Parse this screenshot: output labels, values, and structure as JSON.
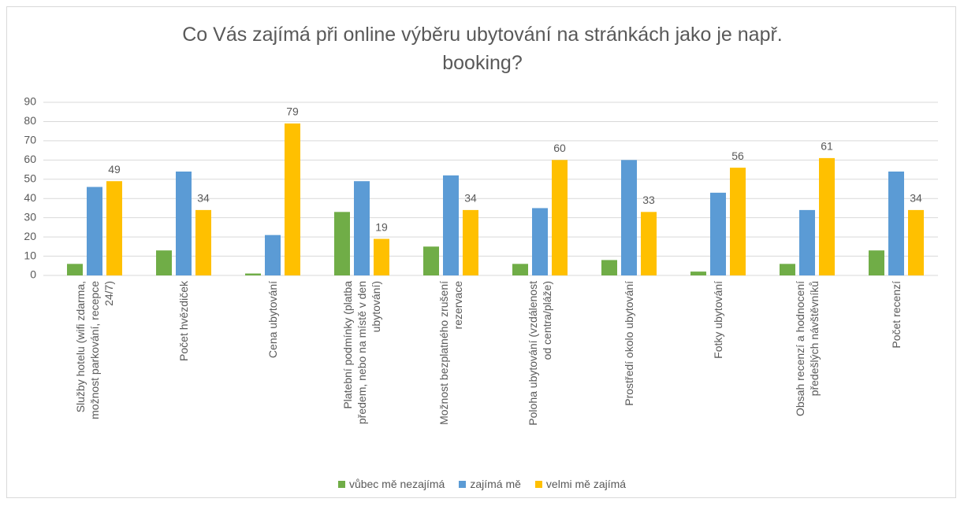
{
  "chart_data": {
    "type": "bar",
    "title": "Co Vás zajímá při online výběru ubytování na stránkách jako je např. booking?",
    "categories": [
      "Služby hotelu (wifi zdarma, možnost parkování, recepce 24/7)",
      "Počet hvězdiček",
      "Cena ubytování",
      "Platební podmínky (platba předem, nebo na místě v den ubytování)",
      "Možnost bezplatného zrušení rezervace",
      "Poloha ubytování (vzdálenost od centra/pláže)",
      "Prostředí okolo ubytování",
      "Fotky ubytování",
      "Obsah recenzí a hodnocení předešlých návštěvníků",
      "Počet recenzí"
    ],
    "series": [
      {
        "name": "vůbec mě nezajímá",
        "color": "#70ad47",
        "values": [
          6,
          13,
          1,
          33,
          15,
          6,
          8,
          2,
          6,
          13
        ]
      },
      {
        "name": "zajímá mě",
        "color": "#5b9bd5",
        "values": [
          46,
          54,
          21,
          49,
          52,
          35,
          60,
          43,
          34,
          54
        ]
      },
      {
        "name": "velmi mě zajímá",
        "color": "#ffc000",
        "values": [
          49,
          34,
          79,
          19,
          34,
          60,
          33,
          56,
          61,
          34
        ],
        "data_labels": true
      }
    ],
    "ylim": [
      0,
      90
    ],
    "yticks": [
      0,
      10,
      20,
      30,
      40,
      50,
      60,
      70,
      80,
      90
    ],
    "grid": true,
    "legend": "bottom"
  }
}
